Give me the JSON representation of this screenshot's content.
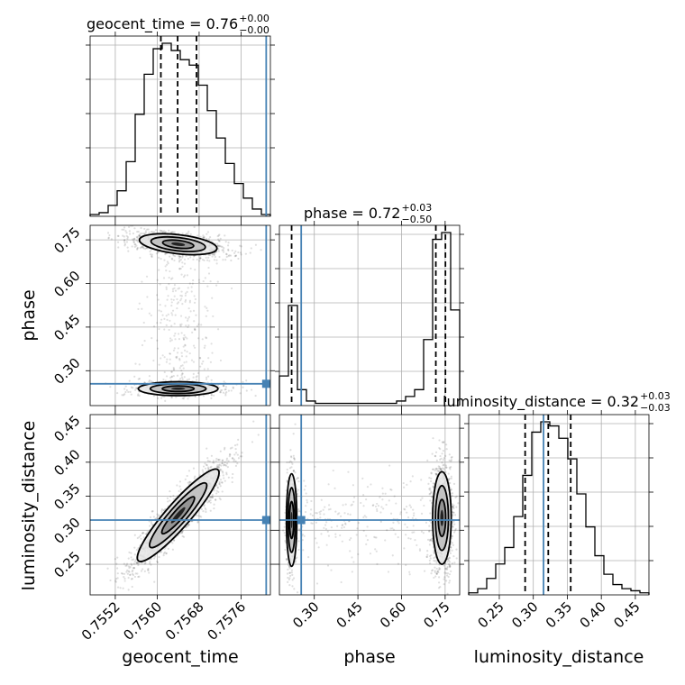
{
  "chart_data": {
    "type": "corner",
    "parameters": [
      "geocent_time",
      "phase",
      "luminosity_distance"
    ],
    "truth": {
      "geocent_time": 0.75808,
      "phase": 0.255,
      "luminosity_distance": 0.315
    },
    "truth_color": "#4682b4",
    "ranges": {
      "geocent_time": [
        0.75472,
        0.75816
      ],
      "phase": [
        0.18,
        0.8
      ],
      "luminosity_distance": [
        0.205,
        0.47
      ]
    },
    "ticks": {
      "geocent_time": {
        "values": [
          0.7552,
          0.756,
          0.7568,
          0.7576
        ],
        "labels": [
          "0.7552",
          "0.7560",
          "0.7568",
          "0.7576"
        ]
      },
      "phase": {
        "values": [
          0.3,
          0.45,
          0.6,
          0.75
        ],
        "labels": [
          "0.30",
          "0.45",
          "0.60",
          "0.75"
        ]
      },
      "luminosity_distance": {
        "values": [
          0.25,
          0.3,
          0.35,
          0.4,
          0.45
        ],
        "labels": [
          "0.25",
          "0.30",
          "0.35",
          "0.40",
          "0.45"
        ]
      }
    },
    "titles": [
      {
        "param": "geocent_time",
        "text": "geocent_time = 0.76",
        "plus": "+0.00",
        "minus": "−0.00"
      },
      {
        "param": "phase",
        "text": "phase = 0.72",
        "plus": "+0.03",
        "minus": "−0.50"
      },
      {
        "param": "luminosity_distance",
        "text": "luminosity_distance = 0.32",
        "plus": "+0.03",
        "minus": "−0.03"
      }
    ],
    "histograms": {
      "geocent_time": {
        "bin_start": 0.75472,
        "bin_width": 0.000172,
        "counts": [
          1,
          2,
          6,
          14,
          30,
          56,
          78,
          92,
          95,
          91,
          86,
          83,
          72,
          58,
          43,
          29,
          18,
          10,
          4,
          1
        ],
        "quantiles": [
          0.75607,
          0.75639,
          0.75675
        ]
      },
      "phase": {
        "bin_start": 0.18,
        "bin_width": 0.031,
        "counts": [
          13,
          44,
          7,
          2,
          1,
          1,
          1,
          1,
          1,
          1,
          1,
          1,
          1,
          2,
          4,
          7,
          29,
          73,
          76,
          42
        ],
        "quantiles": [
          0.222,
          0.718,
          0.751
        ]
      },
      "luminosity_distance": {
        "bin_start": 0.205,
        "bin_width": 0.01325,
        "counts": [
          1,
          3,
          8,
          15,
          23,
          38,
          58,
          79,
          84,
          82,
          76,
          66,
          49,
          33,
          19,
          10,
          5,
          3,
          2,
          1
        ],
        "quantiles": [
          0.288,
          0.322,
          0.355
        ]
      }
    },
    "density_2d": {
      "phase_vs_geocent_time": [
        {
          "x": 0.7564,
          "y": 0.735,
          "sx": 0.00037,
          "sy": 0.018,
          "rho": -0.4,
          "weight": 0.72
        },
        {
          "x": 0.7564,
          "y": 0.238,
          "sx": 0.00038,
          "sy": 0.012,
          "rho": 0.0,
          "weight": 0.28
        }
      ],
      "luminosity_distance_vs_geocent_time": [
        {
          "x": 0.7564,
          "y": 0.322,
          "sx": 0.00039,
          "sy": 0.034,
          "rho": 0.92,
          "weight": 1.0
        }
      ],
      "luminosity_distance_vs_phase": [
        {
          "x": 0.739,
          "y": 0.318,
          "sx": 0.016,
          "sy": 0.034,
          "rho": 0.0,
          "weight": 0.72
        },
        {
          "x": 0.222,
          "y": 0.315,
          "sx": 0.009,
          "sy": 0.034,
          "rho": 0.0,
          "weight": 0.28
        }
      ]
    }
  }
}
